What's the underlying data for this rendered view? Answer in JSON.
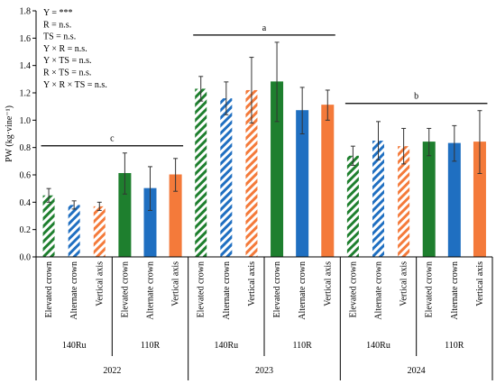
{
  "chart_data": {
    "type": "bar",
    "ylabel": "PW (kg·vine⁻¹)",
    "ylim": [
      0,
      1.8
    ],
    "yticks": [
      "0.0",
      "0.2",
      "0.4",
      "0.6",
      "0.8",
      "1.0",
      "1.2",
      "1.4",
      "1.6",
      "1.8"
    ],
    "stats": [
      "Y = ***",
      "R = n.s.",
      "TS = n.s.",
      "Y × R = n.s.",
      "Y × TS = n.s.",
      "R × TS = n.s.",
      "Y × R × TS = n.s."
    ],
    "systems": [
      "Elevated crown",
      "Alternate crown",
      "Vertical axis"
    ],
    "system_colors": [
      "#1e7f2e",
      "#1f6fc1",
      "#f47a3a"
    ],
    "years": [
      {
        "year": "2022",
        "letter": "c",
        "rootstocks": [
          {
            "name": "140Ru",
            "hatched": true,
            "values": [
              0.45,
              0.38,
              0.37
            ],
            "errors": [
              0.05,
              0.03,
              0.03
            ]
          },
          {
            "name": "110R",
            "hatched": false,
            "values": [
              0.61,
              0.5,
              0.6
            ],
            "errors": [
              0.15,
              0.16,
              0.12
            ]
          }
        ]
      },
      {
        "year": "2023",
        "letter": "a",
        "rootstocks": [
          {
            "name": "140Ru",
            "hatched": true,
            "values": [
              1.23,
              1.16,
              1.22
            ],
            "errors": [
              0.09,
              0.12,
              0.24
            ]
          },
          {
            "name": "110R",
            "hatched": false,
            "values": [
              1.28,
              1.07,
              1.11
            ],
            "errors": [
              0.29,
              0.17,
              0.11
            ]
          }
        ]
      },
      {
        "year": "2024",
        "letter": "b",
        "rootstocks": [
          {
            "name": "140Ru",
            "hatched": true,
            "values": [
              0.74,
              0.85,
              0.81
            ],
            "errors": [
              0.07,
              0.14,
              0.13
            ]
          },
          {
            "name": "110R",
            "hatched": false,
            "values": [
              0.84,
              0.83,
              0.84
            ],
            "errors": [
              0.1,
              0.13,
              0.23
            ]
          }
        ]
      }
    ]
  }
}
